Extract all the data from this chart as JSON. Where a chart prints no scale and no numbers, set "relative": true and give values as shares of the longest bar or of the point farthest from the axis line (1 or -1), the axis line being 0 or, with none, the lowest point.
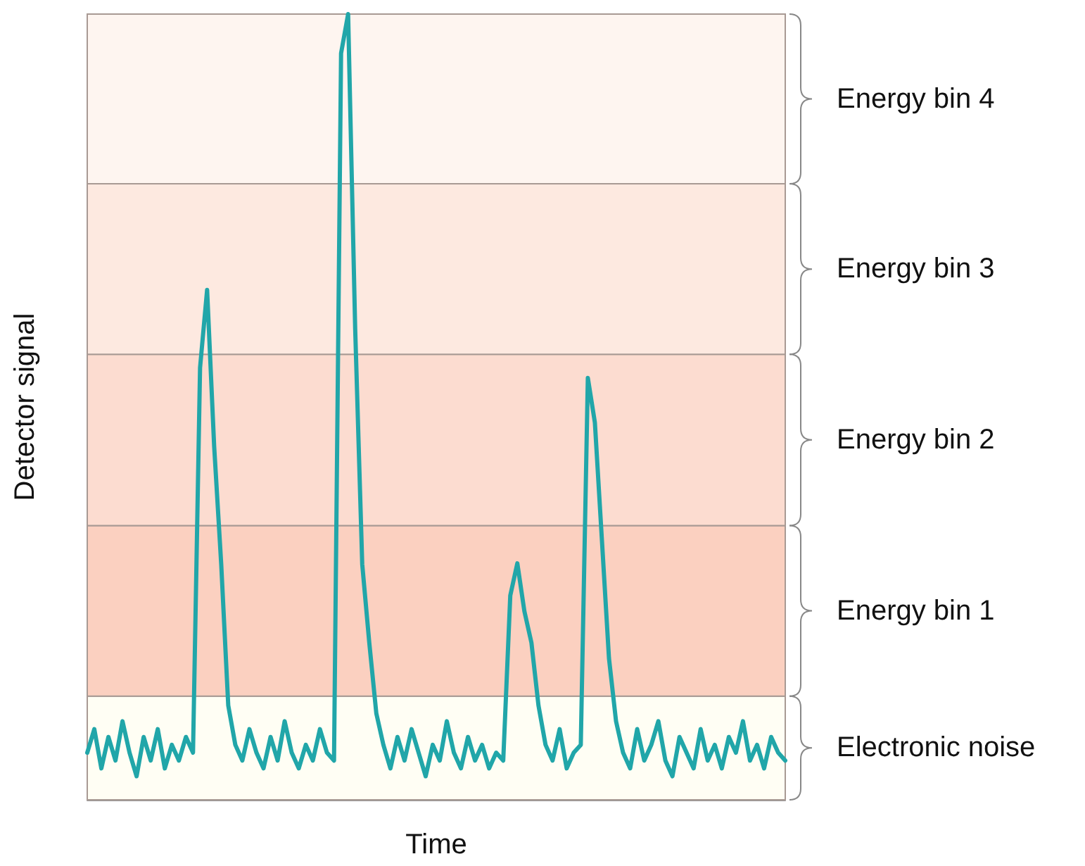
{
  "chart_data": {
    "type": "line",
    "relative": true,
    "xlabel": "Time",
    "ylabel": "Detector signal",
    "marker": "none",
    "line_style": "solid",
    "categories": [
      null,
      null,
      null,
      null,
      null,
      null,
      null,
      null,
      null,
      null,
      null,
      null,
      null,
      null,
      null,
      null,
      null,
      null,
      null,
      null,
      null,
      null,
      null,
      null,
      null,
      null,
      null,
      null,
      null,
      null,
      null,
      null,
      null,
      null,
      null,
      null,
      null,
      null,
      null,
      null,
      null,
      null,
      null,
      null,
      null,
      null,
      null,
      null,
      null,
      null,
      null,
      null,
      null,
      null,
      null,
      null,
      null,
      null,
      null,
      null,
      null,
      null,
      null,
      null,
      null,
      null,
      null,
      null,
      null,
      null,
      null,
      null,
      null,
      null,
      null,
      null,
      null,
      null,
      null,
      null,
      null,
      null,
      null,
      null,
      null,
      null,
      null,
      null,
      null,
      null,
      null,
      null,
      null,
      null,
      null,
      null,
      null,
      null,
      null,
      null
    ],
    "series": [
      {
        "color": "#21a6a9",
        "values": [
          0.06,
          0.09,
          0.04,
          0.08,
          0.05,
          0.1,
          0.06,
          0.03,
          0.08,
          0.05,
          0.09,
          0.04,
          0.07,
          0.05,
          0.08,
          0.06,
          0.55,
          0.649,
          0.45,
          0.3,
          0.12,
          0.07,
          0.05,
          0.09,
          0.06,
          0.04,
          0.08,
          0.05,
          0.1,
          0.06,
          0.04,
          0.07,
          0.05,
          0.09,
          0.06,
          0.05,
          0.95,
          1.0,
          0.6,
          0.3,
          0.2,
          0.11,
          0.07,
          0.04,
          0.08,
          0.05,
          0.09,
          0.06,
          0.03,
          0.07,
          0.05,
          0.1,
          0.06,
          0.04,
          0.08,
          0.05,
          0.07,
          0.04,
          0.06,
          0.05,
          0.26,
          0.301,
          0.24,
          0.2,
          0.12,
          0.07,
          0.05,
          0.09,
          0.04,
          0.06,
          0.07,
          0.537,
          0.48,
          0.33,
          0.18,
          0.1,
          0.06,
          0.04,
          0.09,
          0.05,
          0.07,
          0.1,
          0.05,
          0.03,
          0.08,
          0.06,
          0.04,
          0.09,
          0.05,
          0.07,
          0.04,
          0.08,
          0.06,
          0.1,
          0.05,
          0.07,
          0.04,
          0.08,
          0.06,
          0.05
        ]
      }
    ],
    "bands": [
      {
        "axis": "y",
        "from": 0,
        "to": 0.132,
        "label": "Electronic noise",
        "color": "#fffef4"
      },
      {
        "axis": "y",
        "from": 0.132,
        "to": 0.349,
        "label": "Energy bin 1",
        "color": "#fbd0c0"
      },
      {
        "axis": "y",
        "from": 0.349,
        "to": 0.567,
        "label": "Energy bin 2",
        "color": "#fcdcd0"
      },
      {
        "axis": "y",
        "from": 0.567,
        "to": 0.784,
        "label": "Energy bin 3",
        "color": "#fde9e0"
      },
      {
        "axis": "y",
        "from": 0.784,
        "to": 1.0,
        "label": "Energy bin 4",
        "color": "#fef5f0"
      }
    ]
  }
}
